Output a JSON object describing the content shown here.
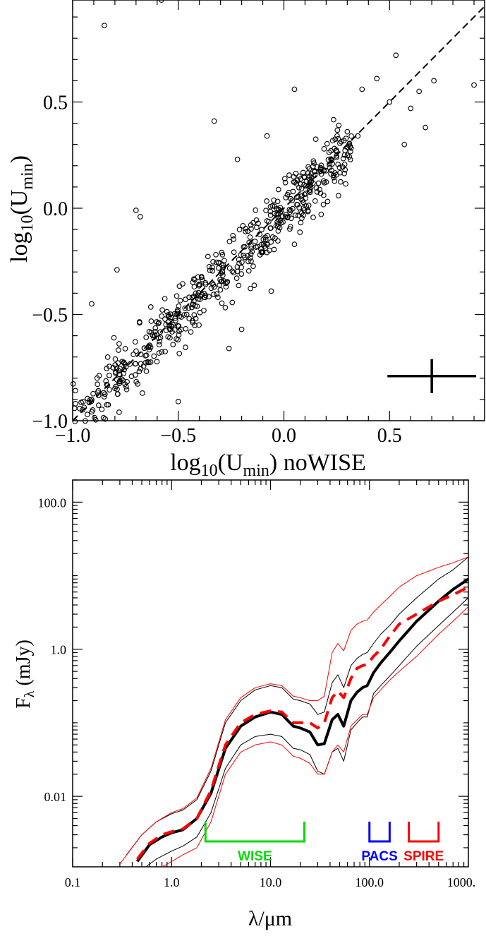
{
  "chart_data": [
    {
      "type": "scatter",
      "xlabel": "log10(Umin) noWISE",
      "ylabel": "log10(Umin)",
      "xlim": [
        -1.0,
        0.95
      ],
      "ylim": [
        -1.0,
        0.98
      ],
      "xticks": [
        "−1.0",
        "−0.5",
        "0.0",
        "0.5"
      ],
      "xtick_values": [
        -1.0,
        -0.5,
        0.0,
        0.5
      ],
      "yticks": [
        "−1.0",
        "−0.5",
        "0.0",
        "0.5"
      ],
      "ytick_values": [
        -1.0,
        -0.5,
        0.0,
        0.5
      ],
      "reference_line": {
        "style": "dashed",
        "color": "#000000",
        "x": [
          -1.0,
          0.95
        ],
        "y": [
          -1.0,
          0.95
        ]
      },
      "error_cross": {
        "x": 0.7,
        "y": -0.79,
        "xerr": 0.21,
        "yerr": 0.08
      },
      "outliers": [
        {
          "x": -0.85,
          "y": 0.86
        },
        {
          "x": -0.58,
          "y": 0.98
        },
        {
          "x": -0.33,
          "y": 0.41
        },
        {
          "x": 0.05,
          "y": 0.56
        },
        {
          "x": 0.37,
          "y": 0.56
        },
        {
          "x": 0.44,
          "y": 0.61
        },
        {
          "x": 0.53,
          "y": 0.72
        },
        {
          "x": 0.5,
          "y": 0.5
        },
        {
          "x": 0.57,
          "y": 0.3
        },
        {
          "x": 0.6,
          "y": 0.47
        },
        {
          "x": 0.64,
          "y": 0.55
        },
        {
          "x": 0.67,
          "y": 0.38
        },
        {
          "x": 0.71,
          "y": 0.6
        },
        {
          "x": 0.9,
          "y": 0.58
        },
        {
          "x": -0.7,
          "y": -0.01
        },
        {
          "x": -0.68,
          "y": -0.04
        },
        {
          "x": -0.79,
          "y": -0.29
        },
        {
          "x": -0.91,
          "y": -0.45
        },
        {
          "x": -0.22,
          "y": 0.23
        },
        {
          "x": -0.08,
          "y": 0.34
        },
        {
          "x": 0.26,
          "y": 0.39
        },
        {
          "x": 0.3,
          "y": 0.36
        },
        {
          "x": 0.35,
          "y": 0.34
        },
        {
          "x": -0.26,
          "y": -0.66
        },
        {
          "x": -0.2,
          "y": -0.57
        },
        {
          "x": -0.06,
          "y": -0.39
        },
        {
          "x": -0.5,
          "y": -0.91
        },
        {
          "x": -0.78,
          "y": -0.96
        },
        {
          "x": -0.67,
          "y": -0.87
        },
        {
          "x": 0.01,
          "y": -0.03
        },
        {
          "x": 0.05,
          "y": -0.17
        },
        {
          "x": 0.12,
          "y": 0.08
        },
        {
          "x": 0.19,
          "y": 0.18
        }
      ],
      "main_cloud": {
        "count": 560,
        "slope": 1.0,
        "intercept": -0.02,
        "scatter": 0.07,
        "x_range": [
          -1.0,
          0.32
        ]
      }
    },
    {
      "type": "line",
      "xlabel": "λ/μm",
      "ylabel": "Fλ (mJy)",
      "xscale": "log",
      "yscale": "log",
      "xlim": [
        0.1,
        1000
      ],
      "ylim": [
        0.0011,
        200
      ],
      "xticks": [
        "0.1",
        "1.0",
        "10.0",
        "100.0",
        "1000."
      ],
      "xtick_values": [
        0.1,
        1,
        10,
        100,
        1000
      ],
      "yticks": [
        "0.01",
        "1.0",
        "100.0"
      ],
      "ytick_values": [
        0.01,
        1,
        100
      ],
      "series": [
        {
          "style": "thick-solid",
          "color": "#000000",
          "points": [
            [
              0.45,
              0.0013
            ],
            [
              0.6,
              0.0022
            ],
            [
              0.8,
              0.0028
            ],
            [
              1.0,
              0.0032
            ],
            [
              1.3,
              0.0035
            ],
            [
              1.8,
              0.005
            ],
            [
              2.5,
              0.011
            ],
            [
              3.5,
              0.045
            ],
            [
              5,
              0.09
            ],
            [
              7,
              0.12
            ],
            [
              10,
              0.14
            ],
            [
              13,
              0.13
            ],
            [
              17,
              0.09
            ],
            [
              20,
              0.085
            ],
            [
              25,
              0.075
            ],
            [
              30,
              0.05
            ],
            [
              35,
              0.052
            ],
            [
              42,
              0.11
            ],
            [
              48,
              0.13
            ],
            [
              55,
              0.09
            ],
            [
              65,
              0.2
            ],
            [
              75,
              0.26
            ],
            [
              85,
              0.3
            ],
            [
              95,
              0.32
            ],
            [
              110,
              0.48
            ],
            [
              130,
              0.65
            ],
            [
              160,
              0.9
            ],
            [
              200,
              1.3
            ],
            [
              300,
              2.4
            ],
            [
              500,
              4.5
            ],
            [
              700,
              6.5
            ],
            [
              1000,
              9
            ]
          ]
        },
        {
          "style": "thick-dashed",
          "color": "#ff0000",
          "points": [
            [
              0.45,
              0.0014
            ],
            [
              0.6,
              0.0023
            ],
            [
              0.8,
              0.003
            ],
            [
              1.0,
              0.0033
            ],
            [
              1.3,
              0.0036
            ],
            [
              1.8,
              0.005
            ],
            [
              2.5,
              0.012
            ],
            [
              3.5,
              0.05
            ],
            [
              5,
              0.1
            ],
            [
              7,
              0.13
            ],
            [
              10,
              0.145
            ],
            [
              13,
              0.14
            ],
            [
              17,
              0.1
            ],
            [
              20,
              0.1
            ],
            [
              25,
              0.1
            ],
            [
              30,
              0.085
            ],
            [
              35,
              0.1
            ],
            [
              42,
              0.22
            ],
            [
              48,
              0.27
            ],
            [
              55,
              0.22
            ],
            [
              65,
              0.4
            ],
            [
              75,
              0.55
            ],
            [
              85,
              0.6
            ],
            [
              95,
              0.62
            ],
            [
              110,
              0.8
            ],
            [
              130,
              1.0
            ],
            [
              160,
              1.5
            ],
            [
              200,
              2.2
            ],
            [
              300,
              3.0
            ],
            [
              500,
              4.5
            ],
            [
              700,
              5.5
            ],
            [
              1000,
              7
            ]
          ]
        },
        {
          "style": "thin-solid",
          "color": "#000000",
          "points": [
            [
              0.35,
              0.0016
            ],
            [
              0.5,
              0.003
            ],
            [
              0.7,
              0.0045
            ],
            [
              1.0,
              0.0058
            ],
            [
              1.3,
              0.0065
            ],
            [
              1.8,
              0.009
            ],
            [
              2.5,
              0.022
            ],
            [
              3.5,
              0.1
            ],
            [
              5,
              0.2
            ],
            [
              7,
              0.28
            ],
            [
              10,
              0.32
            ],
            [
              13,
              0.3
            ],
            [
              17,
              0.21
            ],
            [
              20,
              0.2
            ],
            [
              25,
              0.18
            ],
            [
              30,
              0.13
            ],
            [
              35,
              0.14
            ],
            [
              42,
              0.35
            ],
            [
              48,
              0.45
            ],
            [
              55,
              0.3
            ],
            [
              65,
              0.6
            ],
            [
              75,
              0.75
            ],
            [
              85,
              0.85
            ],
            [
              95,
              0.9
            ],
            [
              110,
              1.2
            ],
            [
              130,
              1.6
            ],
            [
              160,
              2.1
            ],
            [
              200,
              3
            ],
            [
              300,
              5
            ],
            [
              500,
              9
            ],
            [
              700,
              12
            ],
            [
              1000,
              18
            ]
          ]
        },
        {
          "style": "thin-solid",
          "color": "#000000",
          "points": [
            [
              0.55,
              0.0011
            ],
            [
              0.7,
              0.0014
            ],
            [
              1.0,
              0.0018
            ],
            [
              1.3,
              0.0021
            ],
            [
              1.8,
              0.0028
            ],
            [
              2.5,
              0.006
            ],
            [
              3.5,
              0.024
            ],
            [
              5,
              0.05
            ],
            [
              7,
              0.065
            ],
            [
              10,
              0.07
            ],
            [
              13,
              0.065
            ],
            [
              17,
              0.045
            ],
            [
              20,
              0.043
            ],
            [
              25,
              0.037
            ],
            [
              30,
              0.022
            ],
            [
              35,
              0.02
            ],
            [
              42,
              0.04
            ],
            [
              48,
              0.045
            ],
            [
              55,
              0.03
            ],
            [
              65,
              0.08
            ],
            [
              75,
              0.1
            ],
            [
              85,
              0.12
            ],
            [
              95,
              0.12
            ],
            [
              110,
              0.25
            ],
            [
              130,
              0.32
            ],
            [
              160,
              0.43
            ],
            [
              200,
              0.6
            ],
            [
              300,
              1.1
            ],
            [
              500,
              2.1
            ],
            [
              700,
              3.2
            ],
            [
              1000,
              5
            ]
          ]
        },
        {
          "style": "thin-solid",
          "color": "#ff0000",
          "points": [
            [
              0.3,
              0.0012
            ],
            [
              0.5,
              0.003
            ],
            [
              0.7,
              0.0045
            ],
            [
              1.0,
              0.006
            ],
            [
              1.3,
              0.0068
            ],
            [
              1.8,
              0.0095
            ],
            [
              2.5,
              0.024
            ],
            [
              3.5,
              0.11
            ],
            [
              5,
              0.22
            ],
            [
              7,
              0.3
            ],
            [
              10,
              0.34
            ],
            [
              13,
              0.32
            ],
            [
              17,
              0.23
            ],
            [
              20,
              0.22
            ],
            [
              25,
              0.2
            ],
            [
              30,
              0.2
            ],
            [
              35,
              0.23
            ],
            [
              42,
              0.9
            ],
            [
              48,
              1.2
            ],
            [
              55,
              0.95
            ],
            [
              65,
              1.8
            ],
            [
              75,
              2.2
            ],
            [
              85,
              2.4
            ],
            [
              95,
              2.5
            ],
            [
              110,
              3.2
            ],
            [
              130,
              4
            ],
            [
              160,
              5.2
            ],
            [
              200,
              7
            ],
            [
              300,
              10
            ],
            [
              500,
              13
            ],
            [
              700,
              15
            ],
            [
              1000,
              18
            ]
          ]
        },
        {
          "style": "thin-solid",
          "color": "#ff0000",
          "points": [
            [
              0.8,
              0.0011
            ],
            [
              1.0,
              0.0013
            ],
            [
              1.3,
              0.0016
            ],
            [
              1.8,
              0.002
            ],
            [
              2.5,
              0.0045
            ],
            [
              3.5,
              0.02
            ],
            [
              5,
              0.04
            ],
            [
              7,
              0.05
            ],
            [
              10,
              0.055
            ],
            [
              13,
              0.05
            ],
            [
              17,
              0.035
            ],
            [
              20,
              0.033
            ],
            [
              25,
              0.028
            ],
            [
              30,
              0.02
            ],
            [
              35,
              0.02
            ],
            [
              42,
              0.04
            ],
            [
              48,
              0.05
            ],
            [
              55,
              0.04
            ],
            [
              65,
              0.09
            ],
            [
              75,
              0.11
            ],
            [
              85,
              0.13
            ],
            [
              95,
              0.13
            ],
            [
              110,
              0.22
            ],
            [
              130,
              0.28
            ],
            [
              160,
              0.38
            ],
            [
              200,
              0.5
            ],
            [
              300,
              0.8
            ],
            [
              500,
              1.6
            ],
            [
              700,
              2.4
            ],
            [
              1000,
              3.8
            ]
          ]
        }
      ],
      "band_brackets": [
        {
          "label": "WISE",
          "color": "#00dd00",
          "x_start": 2.2,
          "x_end": 22
        },
        {
          "label": "PACS",
          "color": "#0000ff",
          "x_start": 100,
          "x_end": 160
        },
        {
          "label": "SPIRE",
          "color": "#ff0000",
          "x_start": 250,
          "x_end": 500
        }
      ]
    }
  ]
}
